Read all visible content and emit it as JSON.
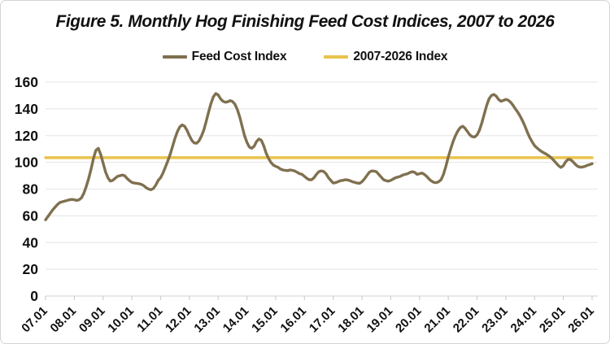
{
  "title": "Figure 5.  Monthly Hog Finishing Feed Cost Indices, 2007 to 2026",
  "legend": [
    {
      "label": "Feed Cost Index",
      "color": "#80704f"
    },
    {
      "label": "2007-2026 Index",
      "color": "#e9c34c"
    }
  ],
  "colors": {
    "feed_cost_line": "#80704f",
    "average_line": "#e9c34c",
    "gridline": "#e9e9e9",
    "axis": "#d9d9d9",
    "tick": "#cfcfcf",
    "label_text": "#111111"
  },
  "chart_data": {
    "type": "line",
    "title": "Figure 5.  Monthly Hog Finishing Feed Cost Indices, 2007 to 2026",
    "legend_position": "top",
    "grid": "horizontal",
    "x_axis": {
      "tick_labels": [
        "07.01",
        "08.01",
        "09.01",
        "10.01",
        "11.01",
        "12.01",
        "13.01",
        "14.01",
        "15.01",
        "16.01",
        "17.01",
        "18.01",
        "19.01",
        "20.01",
        "21.01",
        "22.01",
        "23.01",
        "24.01",
        "25.01",
        "26.01"
      ],
      "note_visible_meaning": "year.month labels, one tick per January"
    },
    "y_axis": {
      "ticks": [
        0,
        20,
        40,
        60,
        80,
        100,
        120,
        140,
        160
      ],
      "range": [
        0,
        160
      ]
    },
    "series": [
      {
        "name": "Feed Cost Index",
        "color": "#80704f",
        "start": "07.01",
        "frequency": "monthly",
        "values": [
          57,
          59.5,
          62,
          64.5,
          66.5,
          68.5,
          70,
          70.5,
          71,
          71.5,
          72,
          72.3,
          72,
          71.5,
          72,
          73.5,
          77,
          82,
          88,
          95,
          103,
          109,
          110.5,
          106,
          99.5,
          93,
          88.5,
          86,
          86.5,
          88,
          89.5,
          90,
          90.5,
          90,
          88,
          86.3,
          85,
          84.5,
          84.3,
          84,
          83.5,
          82.5,
          81,
          80,
          79.5,
          80.5,
          83,
          86.5,
          88.5,
          92,
          96.5,
          101,
          106,
          112,
          118,
          123,
          126.5,
          128,
          127,
          124,
          120,
          116.5,
          114.5,
          114.3,
          116,
          119.5,
          124,
          130.5,
          137.5,
          144,
          149,
          151.5,
          150.5,
          147.5,
          145.7,
          145,
          145.3,
          146.2,
          145.5,
          143.5,
          139.5,
          134,
          127,
          120,
          115,
          111.5,
          110.5,
          112,
          115.5,
          117.5,
          116.5,
          112.5,
          107,
          103,
          100,
          98,
          97,
          96.3,
          95,
          94.3,
          94,
          93.8,
          94.3,
          94,
          93.5,
          92.5,
          91.5,
          91,
          89.5,
          88,
          87,
          87,
          88.5,
          91,
          93,
          93.6,
          93.2,
          91.5,
          88.5,
          86.5,
          84.5,
          84.8,
          85.5,
          86.3,
          86.5,
          87,
          86.8,
          86.3,
          85.5,
          85,
          84.5,
          84.3,
          85.5,
          87.5,
          90,
          92.5,
          93.6,
          93.4,
          93,
          91,
          89,
          87,
          86.3,
          85.9,
          86.5,
          87.5,
          88.5,
          89,
          89.5,
          90.5,
          91,
          91.5,
          92.4,
          93,
          92.5,
          91,
          91.5,
          92,
          91,
          89.5,
          87.5,
          86,
          85,
          84.8,
          85.5,
          87,
          91,
          97,
          104,
          110,
          115.5,
          120,
          123.5,
          126,
          127,
          125.5,
          123,
          120.5,
          119.2,
          119,
          120.5,
          124,
          129.5,
          136,
          142.5,
          147.5,
          150,
          150.8,
          149.5,
          147,
          145.7,
          146.3,
          147.1,
          146.5,
          145,
          142.7,
          140,
          137.5,
          134.5,
          131,
          127,
          122.5,
          118.5,
          115.3,
          112.5,
          110.8,
          109.3,
          108,
          107,
          106,
          104.8,
          103.3,
          101.5,
          99.5,
          97.5,
          96.2,
          97.5,
          100.5,
          102.3,
          102,
          100.5,
          98.5,
          97,
          96.4,
          96.5,
          97,
          97.8,
          98.3,
          99
        ]
      },
      {
        "name": "2007-2026 Index",
        "color": "#e9c34c",
        "value": 103.5
      }
    ]
  }
}
